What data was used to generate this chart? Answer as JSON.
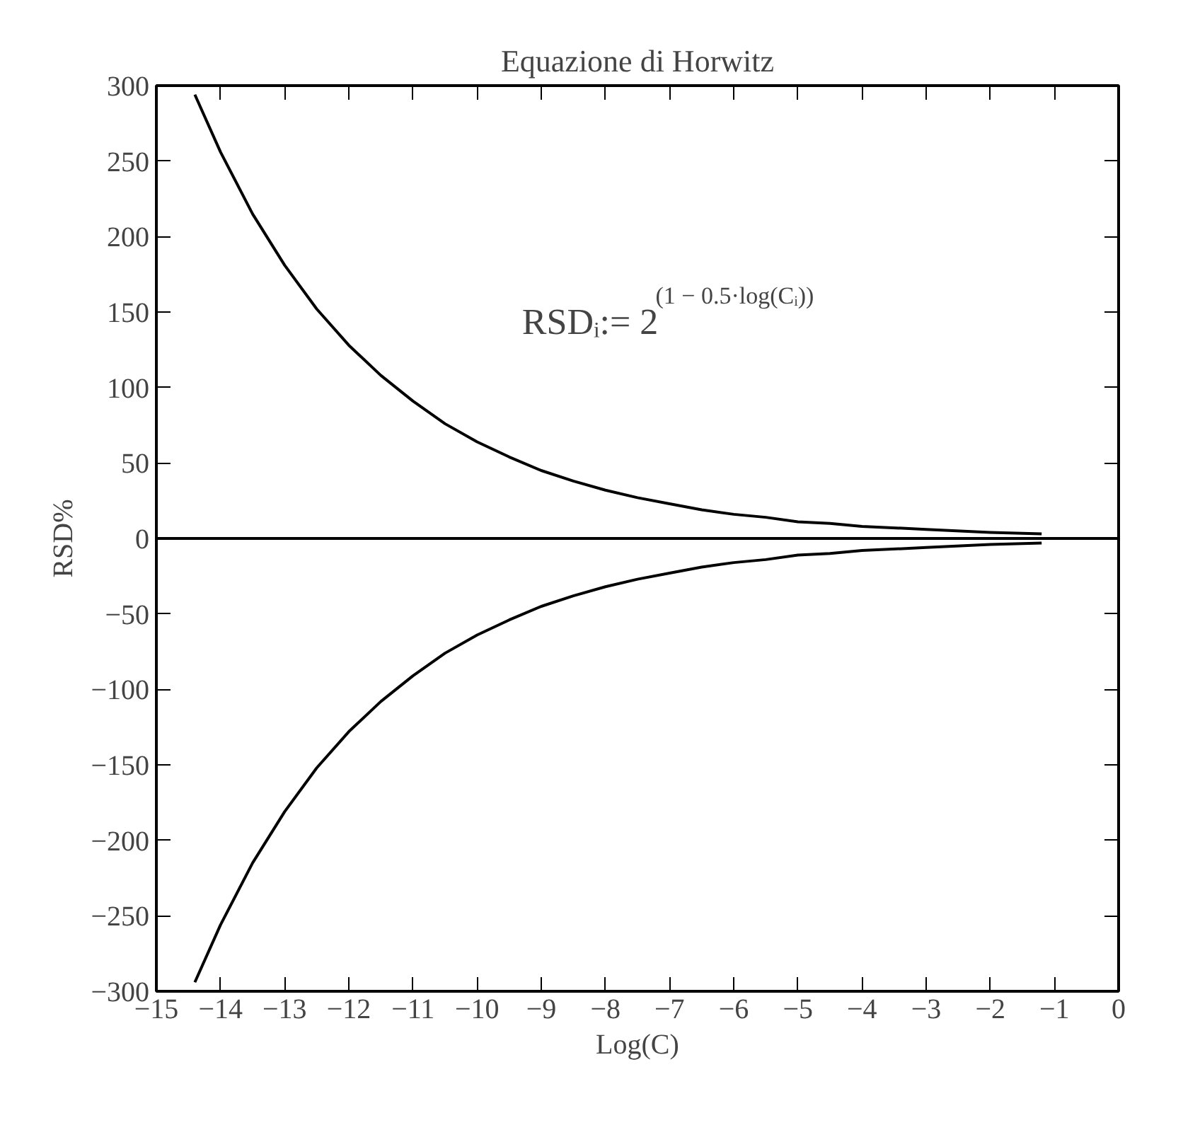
{
  "chart_data": {
    "type": "line",
    "title": "Equazione di Horwitz",
    "xlabel": "Log(C)",
    "ylabel": "RSD%",
    "xlim": [
      -15,
      0
    ],
    "xticks": [
      -15,
      -14,
      -13,
      -12,
      -11,
      -10,
      -9,
      -8,
      -7,
      -6,
      -5,
      -4,
      -3,
      -2,
      -1,
      0
    ],
    "ylim": [
      -300,
      300
    ],
    "yticks": [
      -300,
      -250,
      -200,
      -150,
      -100,
      -50,
      0,
      50,
      100,
      150,
      200,
      250,
      300
    ],
    "x": [
      -14.4,
      -14,
      -13.5,
      -13,
      -12.5,
      -12,
      -11.5,
      -11,
      -10.5,
      -10,
      -9.5,
      -9,
      -8.5,
      -8,
      -7.5,
      -7,
      -6.5,
      -6,
      -5.5,
      -5,
      -4.5,
      -4,
      -3,
      -2,
      -1.2
    ],
    "series": [
      {
        "color": "#000000",
        "values": [
          294,
          256,
          215,
          181,
          152,
          128,
          108,
          91,
          76,
          64,
          54,
          45,
          38,
          32,
          27,
          23,
          19,
          16,
          14,
          11,
          10,
          8,
          6,
          4,
          3
        ]
      },
      {
        "color": "#000000",
        "values": [
          -294,
          -256,
          -215,
          -181,
          -152,
          -128,
          -108,
          -91,
          -76,
          -64,
          -54,
          -45,
          -38,
          -32,
          -27,
          -23,
          -19,
          -16,
          -14,
          -11,
          -10,
          -8,
          -6,
          -4,
          -3
        ]
      }
    ],
    "ref_lines": [
      {
        "axis": "y",
        "value": 0,
        "color": "#000000"
      }
    ],
    "annotations": [
      "RSDᵢ:= 2$^{(1 − 0.5·log(Cᵢ))}$"
    ],
    "grid": false,
    "marker": "none",
    "line_style": "solid"
  }
}
